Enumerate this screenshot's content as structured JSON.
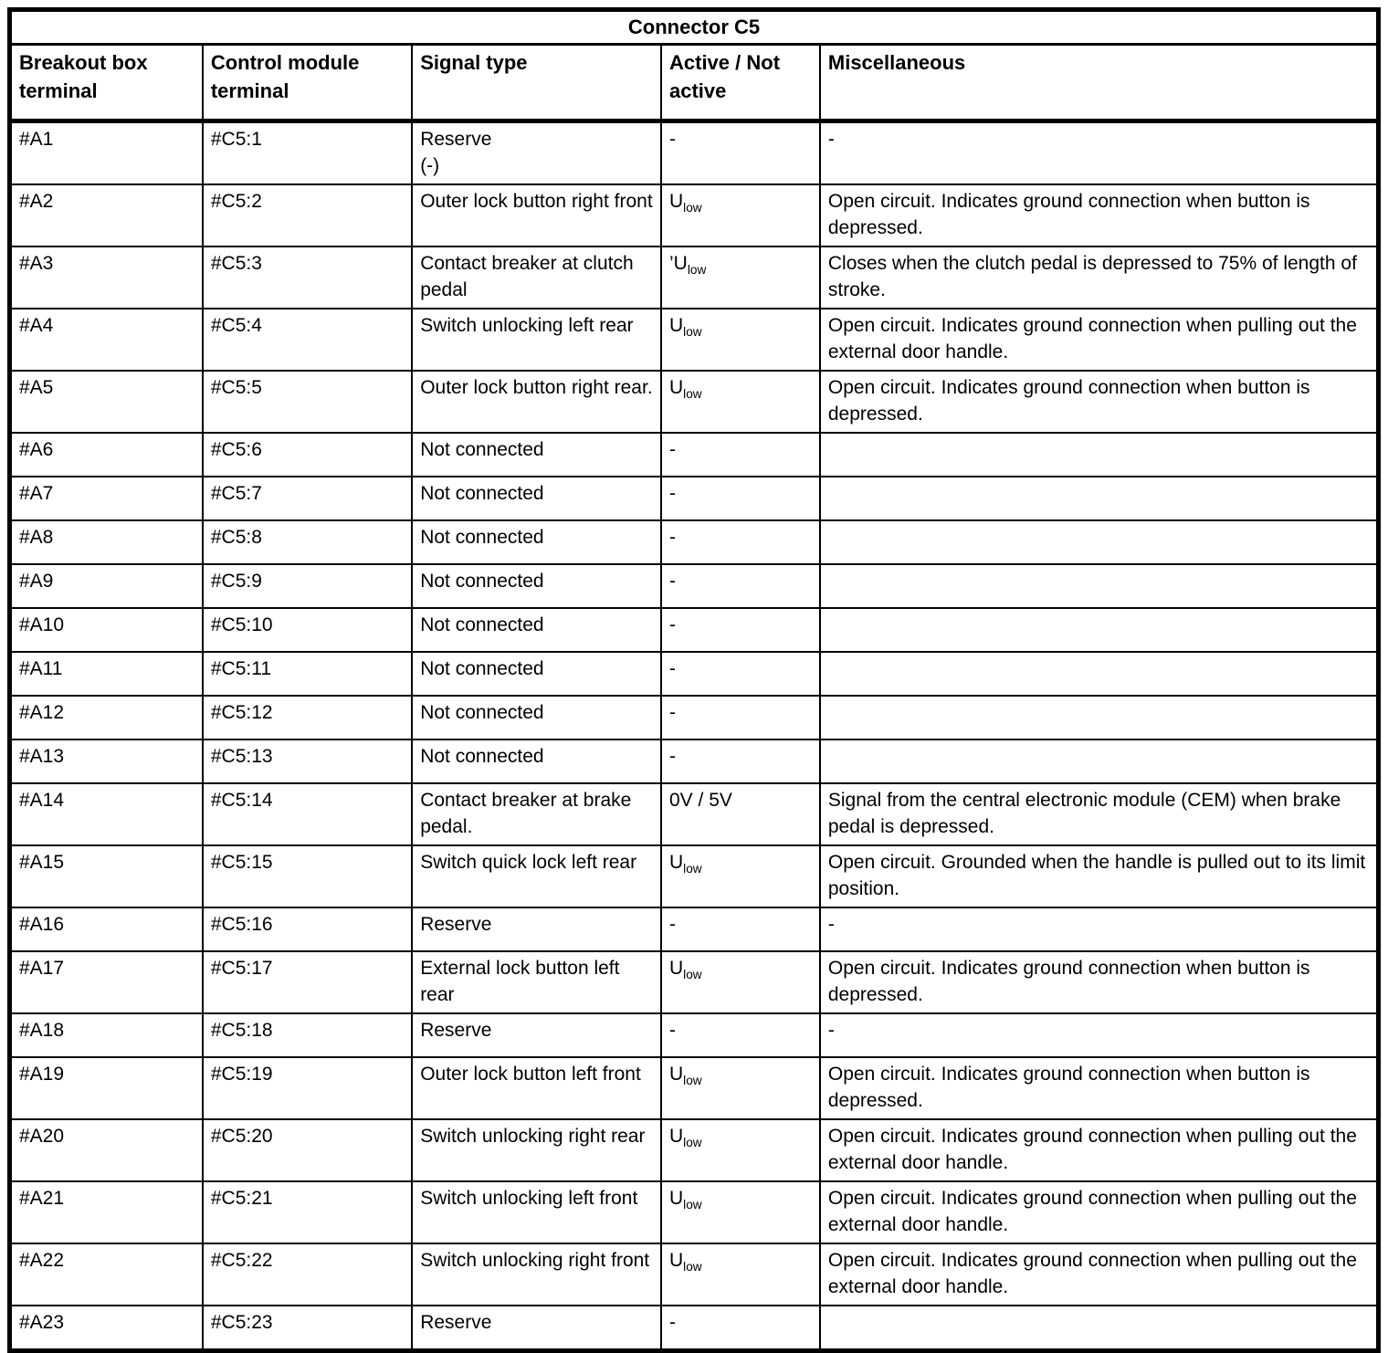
{
  "table": {
    "title": "Connector C5",
    "columns": [
      "Breakout box terminal",
      "Control module terminal",
      "Signal type",
      "Active / Not active",
      "Miscellaneous"
    ],
    "rows": [
      {
        "breakout": "#A1",
        "module": "#C5:1",
        "signal": "Reserve\n(-)",
        "active_base": "-",
        "active_sub": "",
        "misc": "-"
      },
      {
        "breakout": "#A2",
        "module": "#C5:2",
        "signal": "Outer lock button right front",
        "active_base": "U",
        "active_sub": "low",
        "misc": "Open circuit. Indicates ground connection when button is depressed."
      },
      {
        "breakout": "#A3",
        "module": "#C5:3",
        "signal": "Contact breaker at clutch pedal",
        "active_base": "’U",
        "active_sub": "low",
        "misc": "Closes when the clutch pedal is depressed to 75% of length of stroke."
      },
      {
        "breakout": "#A4",
        "module": "#C5:4",
        "signal": "Switch unlocking left rear",
        "active_base": "U",
        "active_sub": "low",
        "misc": "Open circuit. Indicates ground connection when pulling out the external door handle."
      },
      {
        "breakout": "#A5",
        "module": "#C5:5",
        "signal": "Outer lock button right rear.",
        "active_base": "U",
        "active_sub": "low",
        "misc": "Open circuit. Indicates ground connection when button is depressed."
      },
      {
        "breakout": "#A6",
        "module": "#C5:6",
        "signal": "Not connected",
        "active_base": "-",
        "active_sub": "",
        "misc": ""
      },
      {
        "breakout": "#A7",
        "module": "#C5:7",
        "signal": "Not connected",
        "active_base": "-",
        "active_sub": "",
        "misc": ""
      },
      {
        "breakout": "#A8",
        "module": "#C5:8",
        "signal": "Not connected",
        "active_base": "-",
        "active_sub": "",
        "misc": ""
      },
      {
        "breakout": "#A9",
        "module": "#C5:9",
        "signal": "Not connected",
        "active_base": "-",
        "active_sub": "",
        "misc": ""
      },
      {
        "breakout": "#A10",
        "module": "#C5:10",
        "signal": "Not connected",
        "active_base": "-",
        "active_sub": "",
        "misc": ""
      },
      {
        "breakout": "#A11",
        "module": "#C5:11",
        "signal": "Not connected",
        "active_base": "-",
        "active_sub": "",
        "misc": ""
      },
      {
        "breakout": "#A12",
        "module": "#C5:12",
        "signal": "Not connected",
        "active_base": "-",
        "active_sub": "",
        "misc": ""
      },
      {
        "breakout": "#A13",
        "module": "#C5:13",
        "signal": "Not connected",
        "active_base": "-",
        "active_sub": "",
        "misc": ""
      },
      {
        "breakout": "#A14",
        "module": "#C5:14",
        "signal": "Contact breaker at brake pedal.",
        "active_base": "0V / 5V",
        "active_sub": "",
        "misc": "Signal from the central electronic module (CEM) when brake pedal is depressed."
      },
      {
        "breakout": "#A15",
        "module": "#C5:15",
        "signal": "Switch quick lock left rear",
        "active_base": "U",
        "active_sub": "low",
        "misc": "Open circuit. Grounded when the handle is pulled out to its limit position."
      },
      {
        "breakout": "#A16",
        "module": "#C5:16",
        "signal": "Reserve",
        "active_base": "-",
        "active_sub": "",
        "misc": "-"
      },
      {
        "breakout": "#A17",
        "module": "#C5:17",
        "signal": "External lock button left rear",
        "active_base": "U",
        "active_sub": "low",
        "misc": "Open circuit. Indicates ground connection when button is depressed."
      },
      {
        "breakout": "#A18",
        "module": "#C5:18",
        "signal": "Reserve",
        "active_base": "-",
        "active_sub": "",
        "misc": "-"
      },
      {
        "breakout": "#A19",
        "module": "#C5:19",
        "signal": "Outer lock button left front",
        "active_base": "U",
        "active_sub": "low",
        "misc": "Open circuit. Indicates ground connection when button is depressed."
      },
      {
        "breakout": "#A20",
        "module": "#C5:20",
        "signal": "Switch unlocking right rear",
        "active_base": "U",
        "active_sub": "low",
        "misc": "Open circuit. Indicates ground connection when pulling out the external door handle."
      },
      {
        "breakout": "#A21",
        "module": "#C5:21",
        "signal": "Switch unlocking left front",
        "active_base": "U",
        "active_sub": "low",
        "misc": "Open circuit. Indicates ground connection when pulling out the external door handle."
      },
      {
        "breakout": "#A22",
        "module": "#C5:22",
        "signal": "Switch unlocking right front",
        "active_base": "U",
        "active_sub": "low",
        "misc": "Open circuit. Indicates ground connection when pulling out the external door handle."
      },
      {
        "breakout": "#A23",
        "module": "#C5:23",
        "signal": "Reserve",
        "active_base": "-",
        "active_sub": "",
        "misc": ""
      }
    ]
  }
}
